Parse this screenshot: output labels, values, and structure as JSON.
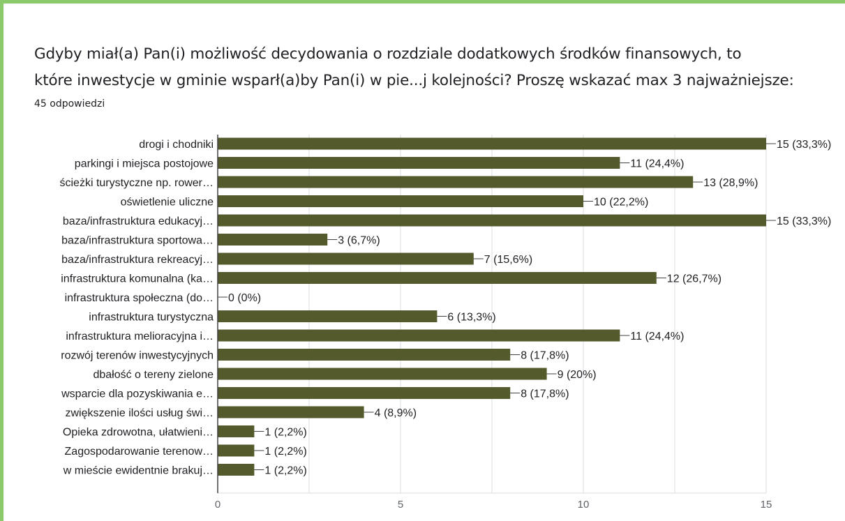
{
  "question": {
    "line1": "Gdyby miał(a) Pan(i) możliwość decydowania o rozdziale dodatkowych środków finansowych, to",
    "line2": "które inwestycje w gminie wsparł(a)by Pan(i) w pie...j kolejności? Proszę wskazać max 3 najważniejsze:",
    "responses": "45 odpowiedzi"
  },
  "colors": {
    "bar": "#545a2c",
    "grid": "#dadce0",
    "text": "#202124",
    "frame": "#8cc96a"
  },
  "chart_data": {
    "type": "bar",
    "orientation": "horizontal",
    "categories": [
      "drogi i chodniki",
      "parkingi i miejsca postojowe",
      "ścieżki turystyczne np. rower…",
      "oświetlenie uliczne",
      "baza/infrastruktura edukacyj…",
      "baza/infrastruktura sportowa…",
      "baza/infrastruktura rekreacyj…",
      "infrastruktura komunalna (ka…",
      "infrastruktura społeczna (do…",
      "infrastruktura turystyczna",
      "infrastruktura melioracyjna i…",
      "rozwój terenów inwestycyjnych",
      "dbałość o tereny zielone",
      "wsparcie dla pozyskiwania e…",
      "zwiększenie ilości usług świ…",
      "Opieka zdrowotna, ułatwieni…",
      "Zagospodarowanie terenow…",
      "w mieście ewidentnie brakuj…"
    ],
    "values": [
      15,
      11,
      13,
      10,
      15,
      3,
      7,
      12,
      0,
      6,
      11,
      8,
      9,
      8,
      4,
      1,
      1,
      1
    ],
    "value_labels": [
      "15 (33,3%)",
      "11 (24,4%)",
      "13 (28,9%)",
      "10 (22,2%)",
      "15 (33,3%)",
      "3 (6,7%)",
      "7 (15,6%)",
      "12 (26,7%)",
      "0 (0%)",
      "6 (13,3%)",
      "11 (24,4%)",
      "8 (17,8%)",
      "9 (20%)",
      "8 (17,8%)",
      "4 (8,9%)",
      "1 (2,2%)",
      "1 (2,2%)",
      "1 (2,2%)"
    ],
    "xlim": [
      0,
      15
    ],
    "xticks": [
      0,
      5,
      10,
      15
    ],
    "grid": true
  }
}
